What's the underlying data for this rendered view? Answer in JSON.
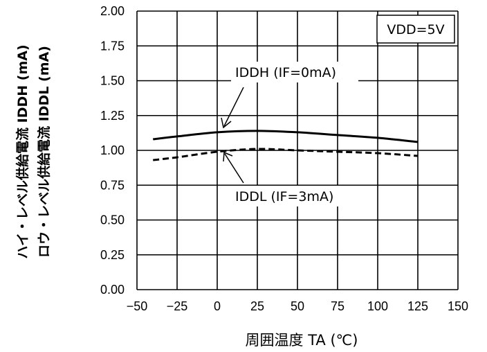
{
  "chart_data": {
    "type": "line",
    "xlabel": "周囲温度 TA (℃)",
    "ylabel_lines": [
      "ハイ・レベル供給電流 IDDH (mA)",
      "ロウ・レベル供給電流 IDDL (mA)"
    ],
    "xlim": [
      -50,
      150
    ],
    "ylim": [
      0,
      2.0
    ],
    "x_ticks": [
      "−50",
      "−25",
      "0",
      "25",
      "50",
      "75",
      "100",
      "125",
      "150"
    ],
    "y_ticks": [
      "0.00",
      "0.25",
      "0.50",
      "0.75",
      "1.00",
      "1.25",
      "1.50",
      "1.75",
      "2.00"
    ],
    "grid": true,
    "series": [
      {
        "name": "IDDH (IF=0mA)",
        "style": "solid",
        "color": "#000000",
        "x": [
          -40,
          -25,
          0,
          25,
          50,
          75,
          100,
          125
        ],
        "y": [
          1.08,
          1.1,
          1.13,
          1.14,
          1.13,
          1.11,
          1.09,
          1.06
        ]
      },
      {
        "name": "IDDL (IF=3mA)",
        "style": "dashed",
        "color": "#000000",
        "x": [
          -40,
          -25,
          0,
          25,
          50,
          75,
          100,
          125
        ],
        "y": [
          0.93,
          0.95,
          0.99,
          1.01,
          1.0,
          0.99,
          0.98,
          0.96
        ]
      }
    ],
    "annotations": [
      {
        "text": "IDDH (IF=0mA)",
        "arrow_to": [
          6,
          1.13
        ]
      },
      {
        "text": "IDDL (IF=3mA)",
        "arrow_to": [
          6,
          0.99
        ]
      }
    ],
    "condition_box": "VDD=5V"
  }
}
